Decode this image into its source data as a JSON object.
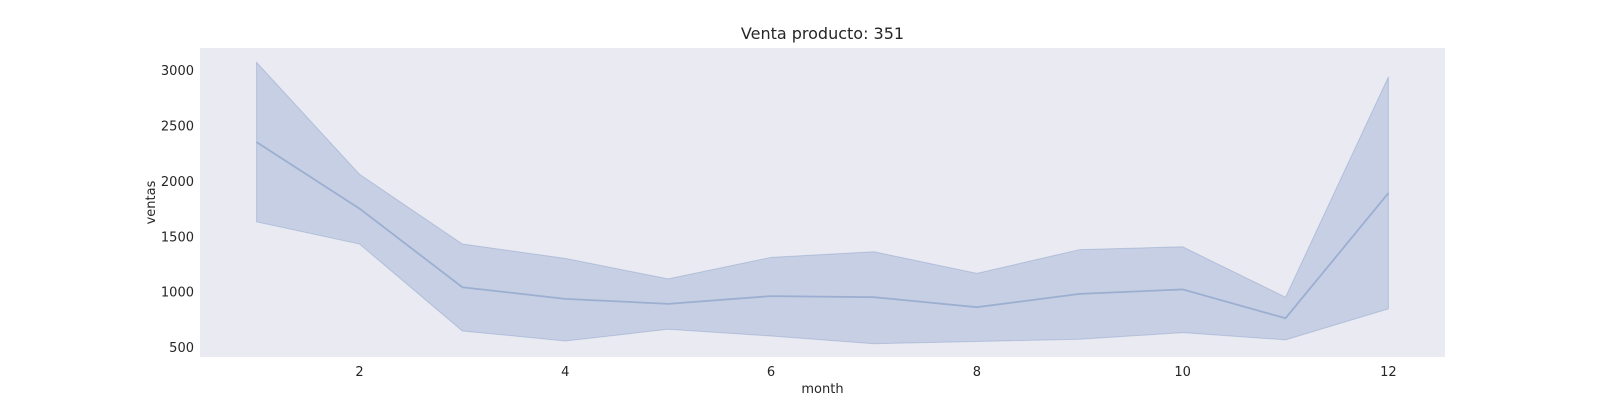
{
  "chart_data": {
    "type": "line",
    "title": "Venta producto: 351",
    "xlabel": "month",
    "ylabel": "ventas",
    "xlim": [
      0.45,
      12.55
    ],
    "ylim": [
      410,
      3200
    ],
    "xticks": [
      2,
      4,
      6,
      8,
      10,
      12
    ],
    "yticks": [
      500,
      1000,
      1500,
      2000,
      2500,
      3000
    ],
    "grid": false,
    "colors": {
      "background": "#eaeaf2",
      "line": "#4c72b0",
      "band": "#4c72b0"
    },
    "series": [
      {
        "x": [
          1,
          2,
          3,
          4,
          5,
          6,
          7,
          8,
          9,
          10,
          11,
          12
        ],
        "values": [
          2350,
          1750,
          1040,
          935,
          890,
          960,
          950,
          860,
          980,
          1020,
          760,
          1890
        ],
        "lower": [
          1630,
          1430,
          645,
          555,
          660,
          600,
          530,
          550,
          570,
          630,
          565,
          845
        ],
        "upper": [
          3070,
          2060,
          1430,
          1300,
          1115,
          1310,
          1360,
          1165,
          1380,
          1405,
          950,
          2940
        ]
      }
    ]
  }
}
